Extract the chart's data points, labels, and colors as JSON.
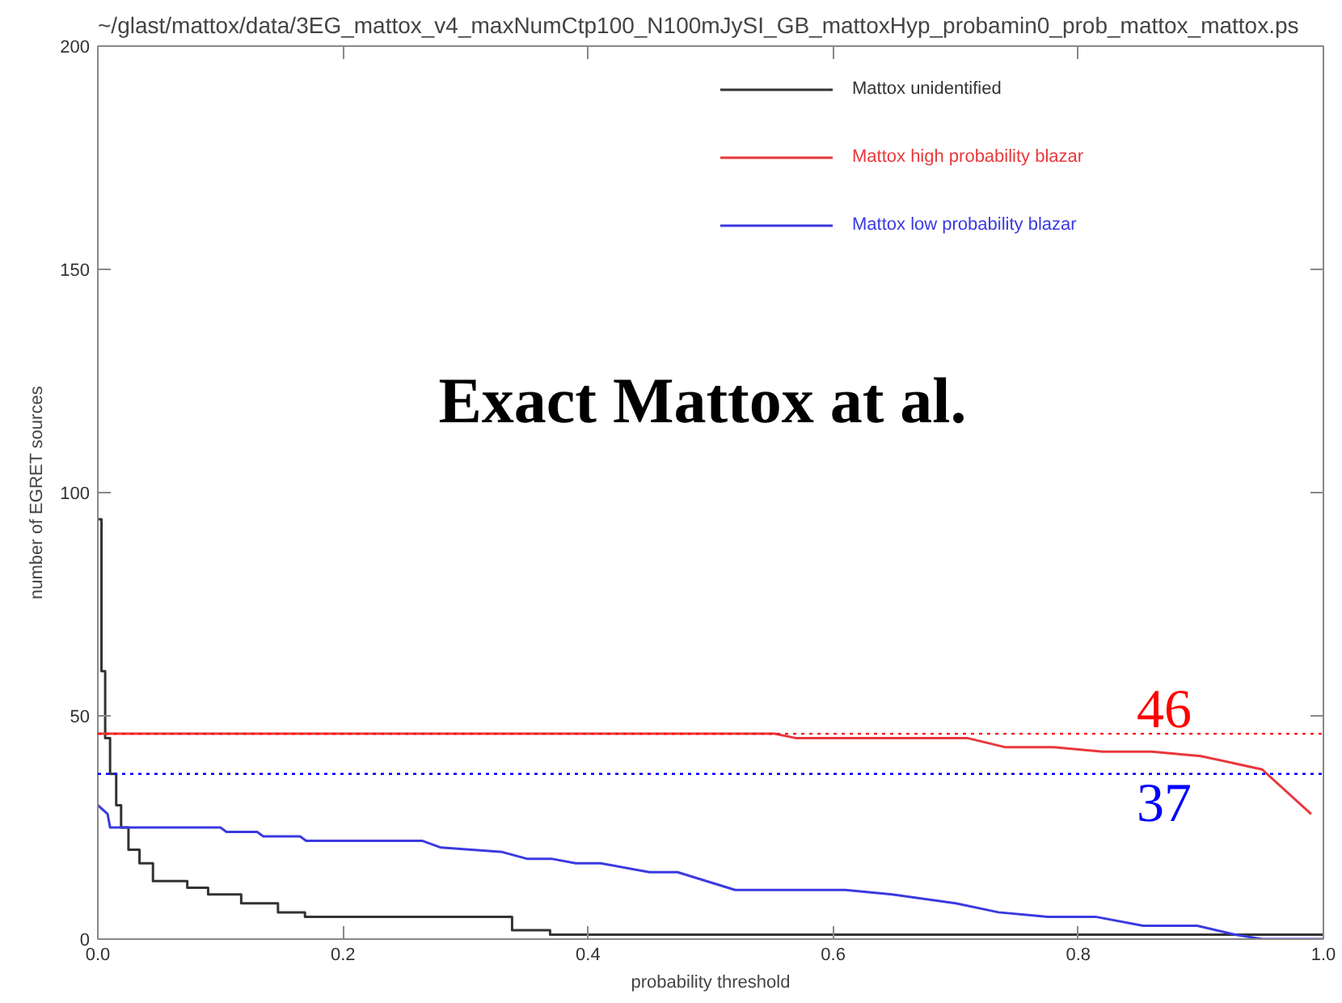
{
  "chart_data": {
    "type": "step",
    "title": "~/glast/mattox/data/3EG_mattox_v4_maxNumCtp100_N100mJySI_GB_mattoxHyp_probamin0_prob_mattox_mattox.ps",
    "xlabel": "probability threshold",
    "ylabel": "number of EGRET sources",
    "xlim": [
      0,
      1
    ],
    "ylim": [
      0,
      200
    ],
    "xticks": [
      {
        "value": 0,
        "label": "0.0"
      },
      {
        "value": 0.2,
        "label": "0.2"
      },
      {
        "value": 0.4,
        "label": "0.4"
      },
      {
        "value": 0.6,
        "label": "0.6"
      },
      {
        "value": 0.8,
        "label": "0.8"
      },
      {
        "value": 1,
        "label": "1.0"
      }
    ],
    "yticks": [
      0,
      50,
      100,
      150,
      200
    ],
    "grid": false,
    "legend": "top right",
    "series": [
      {
        "name": "Mattox unidentified",
        "color": "#333333",
        "x": [
          0,
          0.003,
          0.006,
          0.01,
          0.015,
          0.019,
          0.025,
          0.034,
          0.045,
          0.06,
          0.073,
          0.09,
          0.108,
          0.117,
          0.134,
          0.147,
          0.169,
          0.303,
          0.338,
          0.369,
          1.0
        ],
        "values": [
          94,
          60,
          45,
          37,
          30,
          25,
          20,
          17,
          13,
          13,
          11.5,
          10,
          10,
          8,
          8,
          6,
          5,
          5,
          2,
          1,
          1
        ]
      },
      {
        "name": "Mattox high probability blazar",
        "color": "#e8383c",
        "type": "line",
        "x": [
          0,
          0.552,
          0.57,
          0.71,
          0.74,
          0.78,
          0.82,
          0.86,
          0.9,
          0.95,
          0.99
        ],
        "values": [
          46,
          46,
          45,
          45,
          43,
          43,
          42,
          42,
          41,
          38,
          28
        ]
      },
      {
        "name": "Mattox low probability blazar",
        "color": "#3a3ae0",
        "type": "line",
        "x": [
          0,
          0.008,
          0.01,
          0.1,
          0.105,
          0.13,
          0.135,
          0.165,
          0.17,
          0.265,
          0.28,
          0.33,
          0.35,
          0.37,
          0.39,
          0.41,
          0.45,
          0.473,
          0.52,
          0.61,
          0.648,
          0.7,
          0.735,
          0.775,
          0.814,
          0.853,
          0.897,
          0.928,
          0.95,
          1.0
        ],
        "values": [
          30,
          28,
          25,
          25,
          24,
          24,
          23,
          23,
          22,
          22,
          20.5,
          19.5,
          18,
          18,
          17,
          17,
          15,
          15,
          11,
          11,
          10,
          8,
          6,
          5,
          5,
          3,
          3,
          1,
          0,
          0
        ]
      }
    ],
    "ref_lines": [
      {
        "axis": "y",
        "value": 46,
        "label": "46",
        "color": "#ff0000",
        "line_style": "dotted"
      },
      {
        "axis": "y",
        "value": 37,
        "label": "37",
        "color": "#0000ff",
        "line_style": "dotted"
      }
    ],
    "annotations": [
      "Exact Mattox at al."
    ]
  }
}
